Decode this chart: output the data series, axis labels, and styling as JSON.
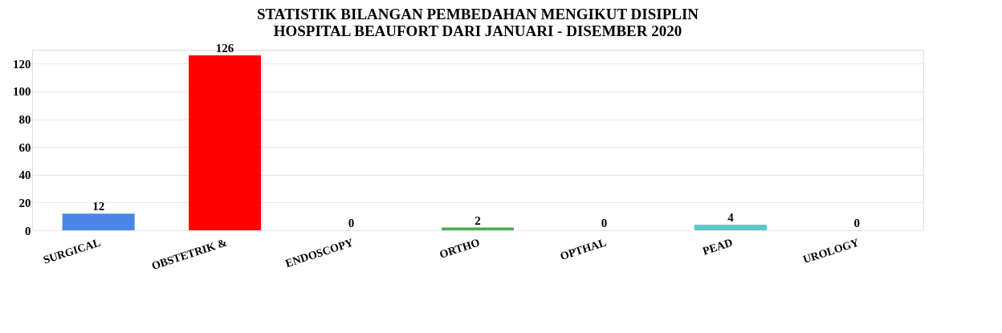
{
  "chart_data": {
    "type": "bar",
    "title": [
      "STATISTIK BILANGAN PEMBEDAHAN MENGIKUT DISIPLIN",
      "HOSPITAL BEAUFORT DARI JANUARI - DISEMBER 2020"
    ],
    "categories": [
      "SURGICAL",
      "OBSTETRIK &",
      "ENDOSCOPY",
      "ORTHO",
      "OPTHAL",
      "PEAD",
      "UROLOGY"
    ],
    "values": [
      12,
      126,
      0,
      2,
      0,
      4,
      0
    ],
    "colors": [
      "#4a86e8",
      "#ff0000",
      "#ffe08a",
      "#4caf50",
      "#ffa826",
      "#5bc8c8",
      "#b4d4ee"
    ],
    "ylim": [
      0,
      130
    ],
    "yticks": [
      0,
      20,
      40,
      60,
      80,
      100,
      120
    ],
    "grid": "y",
    "data_labels": true
  }
}
